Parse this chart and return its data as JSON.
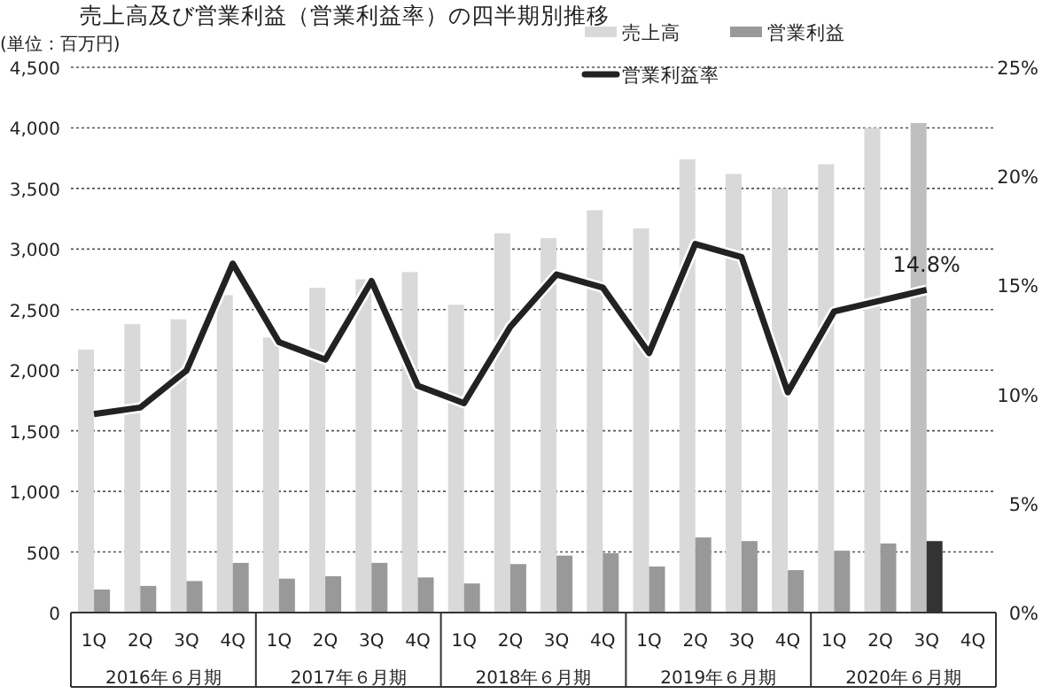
{
  "chart_data": {
    "type": "bar",
    "title": "売上高及び営業利益（営業利益率）の四半期別推移",
    "ylabel": "(単位：百万円)",
    "categories": [
      "1Q",
      "2Q",
      "3Q",
      "4Q",
      "1Q",
      "2Q",
      "3Q",
      "4Q",
      "1Q",
      "2Q",
      "3Q",
      "4Q",
      "1Q",
      "2Q",
      "3Q",
      "4Q",
      "1Q",
      "2Q",
      "3Q",
      "4Q"
    ],
    "annotations": [
      "2016年６月期",
      "2017年６月期",
      "2018年６月期",
      "2019年６月期",
      "2020年６月期"
    ],
    "series": [
      {
        "name": "売上高",
        "color": "#d9d9d9",
        "colors": [
          "#d9d9d9",
          "#d9d9d9",
          "#d9d9d9",
          "#d9d9d9",
          "#d9d9d9",
          "#d9d9d9",
          "#d9d9d9",
          "#d9d9d9",
          "#d9d9d9",
          "#d9d9d9",
          "#d9d9d9",
          "#d9d9d9",
          "#d9d9d9",
          "#d9d9d9",
          "#d9d9d9",
          "#d9d9d9",
          "#d9d9d9",
          "#d9d9d9",
          "#bfbfbf",
          "#d9d9d9"
        ],
        "values": [
          2170,
          2380,
          2420,
          2620,
          2270,
          2680,
          2750,
          2810,
          2540,
          3130,
          3090,
          3320,
          3170,
          3740,
          3620,
          3500,
          3700,
          4000,
          4040,
          null
        ]
      },
      {
        "name": "営業利益",
        "color": "#999999",
        "colors": [
          "#999999",
          "#999999",
          "#999999",
          "#999999",
          "#999999",
          "#999999",
          "#999999",
          "#999999",
          "#999999",
          "#999999",
          "#999999",
          "#999999",
          "#999999",
          "#999999",
          "#999999",
          "#999999",
          "#999999",
          "#999999",
          "#333333",
          "#999999"
        ],
        "values": [
          190,
          220,
          260,
          410,
          280,
          300,
          410,
          290,
          240,
          400,
          470,
          490,
          380,
          620,
          590,
          350,
          510,
          570,
          590,
          null
        ]
      },
      {
        "name": "営業利益率",
        "type": "line",
        "axis": "y2",
        "color": "#222222",
        "values": [
          9.1,
          9.4,
          11.1,
          16.0,
          12.4,
          11.6,
          15.2,
          10.4,
          9.6,
          13.1,
          15.5,
          14.9,
          11.9,
          16.9,
          16.3,
          10.1,
          13.8,
          14.3,
          14.8,
          null
        ],
        "value_labels": [
          null,
          null,
          null,
          null,
          null,
          null,
          null,
          null,
          null,
          null,
          null,
          null,
          null,
          null,
          null,
          null,
          null,
          null,
          "14.8%",
          null
        ]
      }
    ],
    "ylim": [
      0,
      4500
    ],
    "yticks": [
      {
        "value": 0,
        "label": "0"
      },
      {
        "value": 500,
        "label": "500"
      },
      {
        "value": 1000,
        "label": "1,000"
      },
      {
        "value": 1500,
        "label": "1,500"
      },
      {
        "value": 2000,
        "label": "2,000"
      },
      {
        "value": 2500,
        "label": "2,500"
      },
      {
        "value": 3000,
        "label": "3,000"
      },
      {
        "value": 3500,
        "label": "3,500"
      },
      {
        "value": 4000,
        "label": "4,000"
      },
      {
        "value": 4500,
        "label": "4,500"
      }
    ],
    "y2lim": [
      0,
      25
    ],
    "y2ticks": [
      {
        "value": 0,
        "label": "0%"
      },
      {
        "value": 5,
        "label": "5%"
      },
      {
        "value": 10,
        "label": "10%"
      },
      {
        "value": 15,
        "label": "15%"
      },
      {
        "value": 20,
        "label": "20%"
      },
      {
        "value": 25,
        "label": "25%"
      }
    ],
    "grid": "y",
    "legend": "top",
    "line_style": "solid",
    "marker": "none"
  }
}
